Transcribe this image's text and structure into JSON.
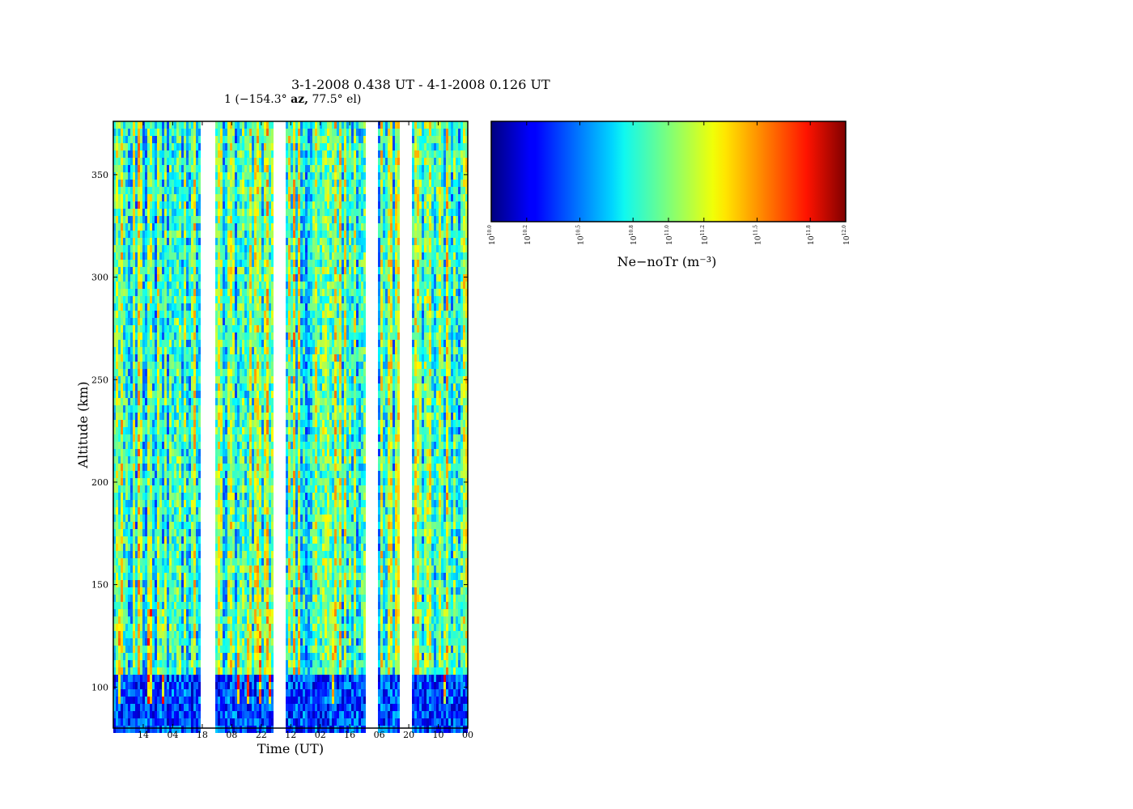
{
  "chart_data": {
    "type": "heatmap",
    "title": "3-1-2008 0.438 UT - 4-1-2008 0.126 UT",
    "subtitle": {
      "beam": "1",
      "az_value": "−154.3°",
      "az_label": "az,",
      "el_value": "77.5°",
      "el_label": "el)"
    },
    "xlabel": "Time (UT)",
    "ylabel": "Altitude (km)",
    "xticks": [
      "14",
      "04",
      "18",
      "08",
      "22",
      "12",
      "02",
      "16",
      "06",
      "20",
      "10",
      "00"
    ],
    "yticks": [
      100,
      150,
      200,
      250,
      300,
      350
    ],
    "ylim": [
      80,
      376
    ],
    "data_gaps": [
      "18–08",
      "22–12",
      "16–06",
      "06–20"
    ],
    "colorbar": {
      "label": "Ne−noTr (m⁻³)",
      "scale": "log",
      "ticks": [
        "10^10.0",
        "10^10.2",
        "10^10.5",
        "10^10.8",
        "10^11.0",
        "10^11.2",
        "10^11.5",
        "10^11.8",
        "10^12.0"
      ],
      "tick_exponents": [
        "10.0",
        "10.2",
        "10.5",
        "10.8",
        "11.0",
        "11.2",
        "11.5",
        "11.8",
        "12.0"
      ],
      "range": [
        10.0,
        12.0
      ],
      "colormap": "jet"
    }
  }
}
